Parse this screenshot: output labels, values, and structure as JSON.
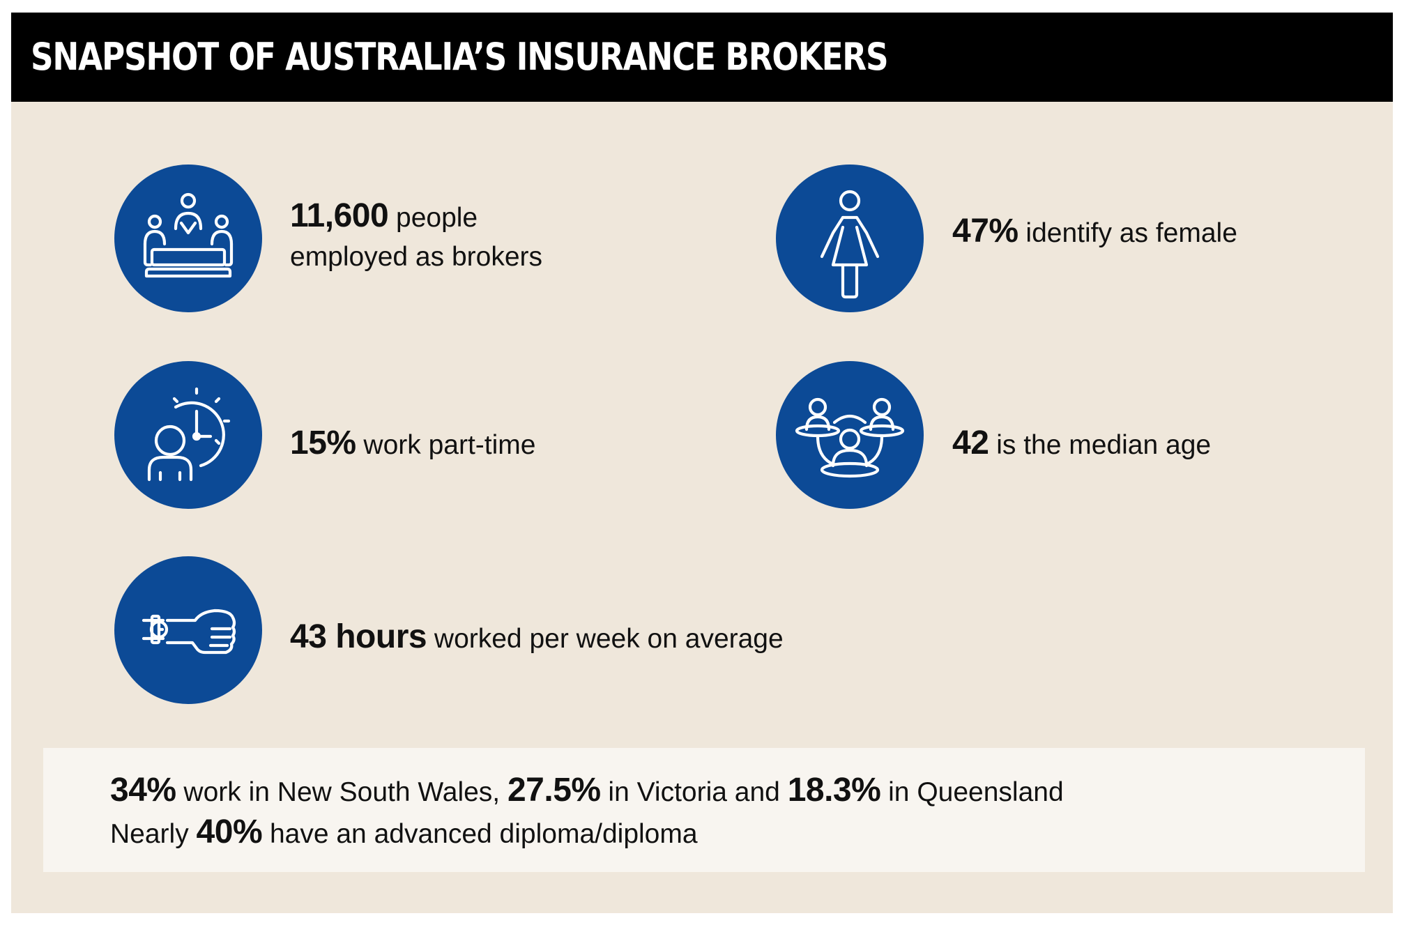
{
  "header": {
    "title": "SNAPSHOT OF AUSTRALIA’S INSURANCE BROKERS"
  },
  "stats": {
    "brokers": {
      "value": "11,600",
      "text": " people",
      "text2": "employed as brokers",
      "icon": "meeting-table-icon"
    },
    "female": {
      "value": "47%",
      "text": " identify as female",
      "icon": "female-person-icon"
    },
    "part_time": {
      "value": "15%",
      "text": " work part-time",
      "icon": "clock-person-icon"
    },
    "age": {
      "value": "42",
      "text": " is the median age",
      "icon": "people-network-icon"
    },
    "hours": {
      "value": "43 hours",
      "text": " worked per week on average",
      "icon": "wristwatch-hand-icon"
    }
  },
  "summary": {
    "nsw_value": "34%",
    "nsw_text": " work in New South Wales, ",
    "vic_value": "27.5%",
    "vic_text": " in Victoria and ",
    "qld_value": "18.3%",
    "qld_text": " in Queensland",
    "diploma_pre": "Nearly ",
    "diploma_value": "40%",
    "diploma_text": " have an advanced diploma/diploma"
  },
  "colors": {
    "icon_circle": "#0c4a96",
    "background": "#efe7db",
    "header": "#000000",
    "summary_box": "#f8f5f0"
  }
}
